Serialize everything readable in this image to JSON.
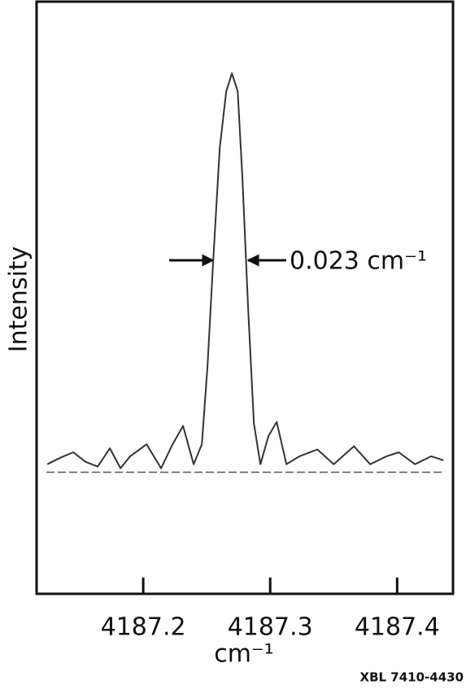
{
  "chart_data": {
    "type": "line",
    "y_label": "Intensity",
    "x_label": "cm⁻¹",
    "annotation": "0.023 cm⁻¹",
    "footer": "XBL 7410-4430",
    "x": [
      4187.1244,
      4187.1353,
      4187.1449,
      4187.1545,
      4187.1641,
      4187.1737,
      4187.1821,
      4187.1897,
      4187.2026,
      4187.2141,
      4187.2231,
      4187.2314,
      4187.2397,
      4187.2462,
      4187.2506,
      4187.2551,
      4187.2603,
      4187.2654,
      4187.2699,
      4187.2744,
      4187.2782,
      4187.2827,
      4187.2872,
      4187.2923,
      4187.2987,
      4187.3051,
      4187.3128,
      4187.3231,
      4187.3372,
      4187.35,
      4187.366,
      4187.3788,
      4187.3917,
      4187.4013,
      4187.4141,
      4187.4269,
      4187.4365
    ],
    "values": [
      0.02,
      0.037,
      0.05,
      0.026,
      0.014,
      0.06,
      0.01,
      0.04,
      0.07,
      0.01,
      0.07,
      0.116,
      0.02,
      0.07,
      0.264,
      0.528,
      0.813,
      0.955,
      1.0,
      0.955,
      0.732,
      0.407,
      0.122,
      0.02,
      0.091,
      0.126,
      0.02,
      0.04,
      0.057,
      0.02,
      0.065,
      0.02,
      0.04,
      0.05,
      0.02,
      0.04,
      0.03
    ],
    "color": "#333333",
    "baseline": 0,
    "xlim": [
      4187.116,
      4187.444
    ],
    "ylim": [
      -0.305,
      1.18
    ],
    "xticks": [
      4187.2,
      4187.3,
      4187.4
    ]
  }
}
